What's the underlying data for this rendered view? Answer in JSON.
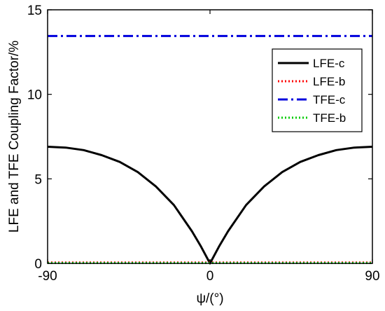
{
  "chart_data": {
    "type": "line",
    "title": "",
    "xlabel": "ψ/(°)",
    "ylabel": "LFE and TFE Coupling Factor/%",
    "xlim": [
      -90,
      90
    ],
    "ylim": [
      0,
      15
    ],
    "xticks": [
      -90,
      0,
      90
    ],
    "yticks": [
      0,
      5,
      10,
      15
    ],
    "grid": false,
    "legend": "top-right",
    "series": [
      {
        "name": "LFE-c",
        "color": "#000000",
        "style": "solid",
        "x": [
          -90,
          -80,
          -70,
          -60,
          -50,
          -40,
          -30,
          -20,
          -10,
          -5,
          0,
          5,
          10,
          20,
          30,
          40,
          50,
          60,
          70,
          80,
          90
        ],
        "y": [
          6.9,
          6.85,
          6.7,
          6.4,
          6.0,
          5.4,
          4.55,
          3.45,
          1.9,
          1.0,
          0.0,
          1.0,
          1.9,
          3.45,
          4.55,
          5.4,
          6.0,
          6.4,
          6.7,
          6.85,
          6.9
        ]
      },
      {
        "name": "LFE-b",
        "color": "#ff0000",
        "style": "dotted",
        "x": [
          -90,
          90
        ],
        "y": [
          0.05,
          0.05
        ]
      },
      {
        "name": "TFE-c",
        "color": "#0000dd",
        "style": "dashdot",
        "x": [
          -90,
          90
        ],
        "y": [
          13.45,
          13.45
        ]
      },
      {
        "name": "TFE-b",
        "color": "#00cc00",
        "style": "dotted",
        "x": [
          -90,
          90
        ],
        "y": [
          0.02,
          0.02
        ]
      }
    ]
  }
}
